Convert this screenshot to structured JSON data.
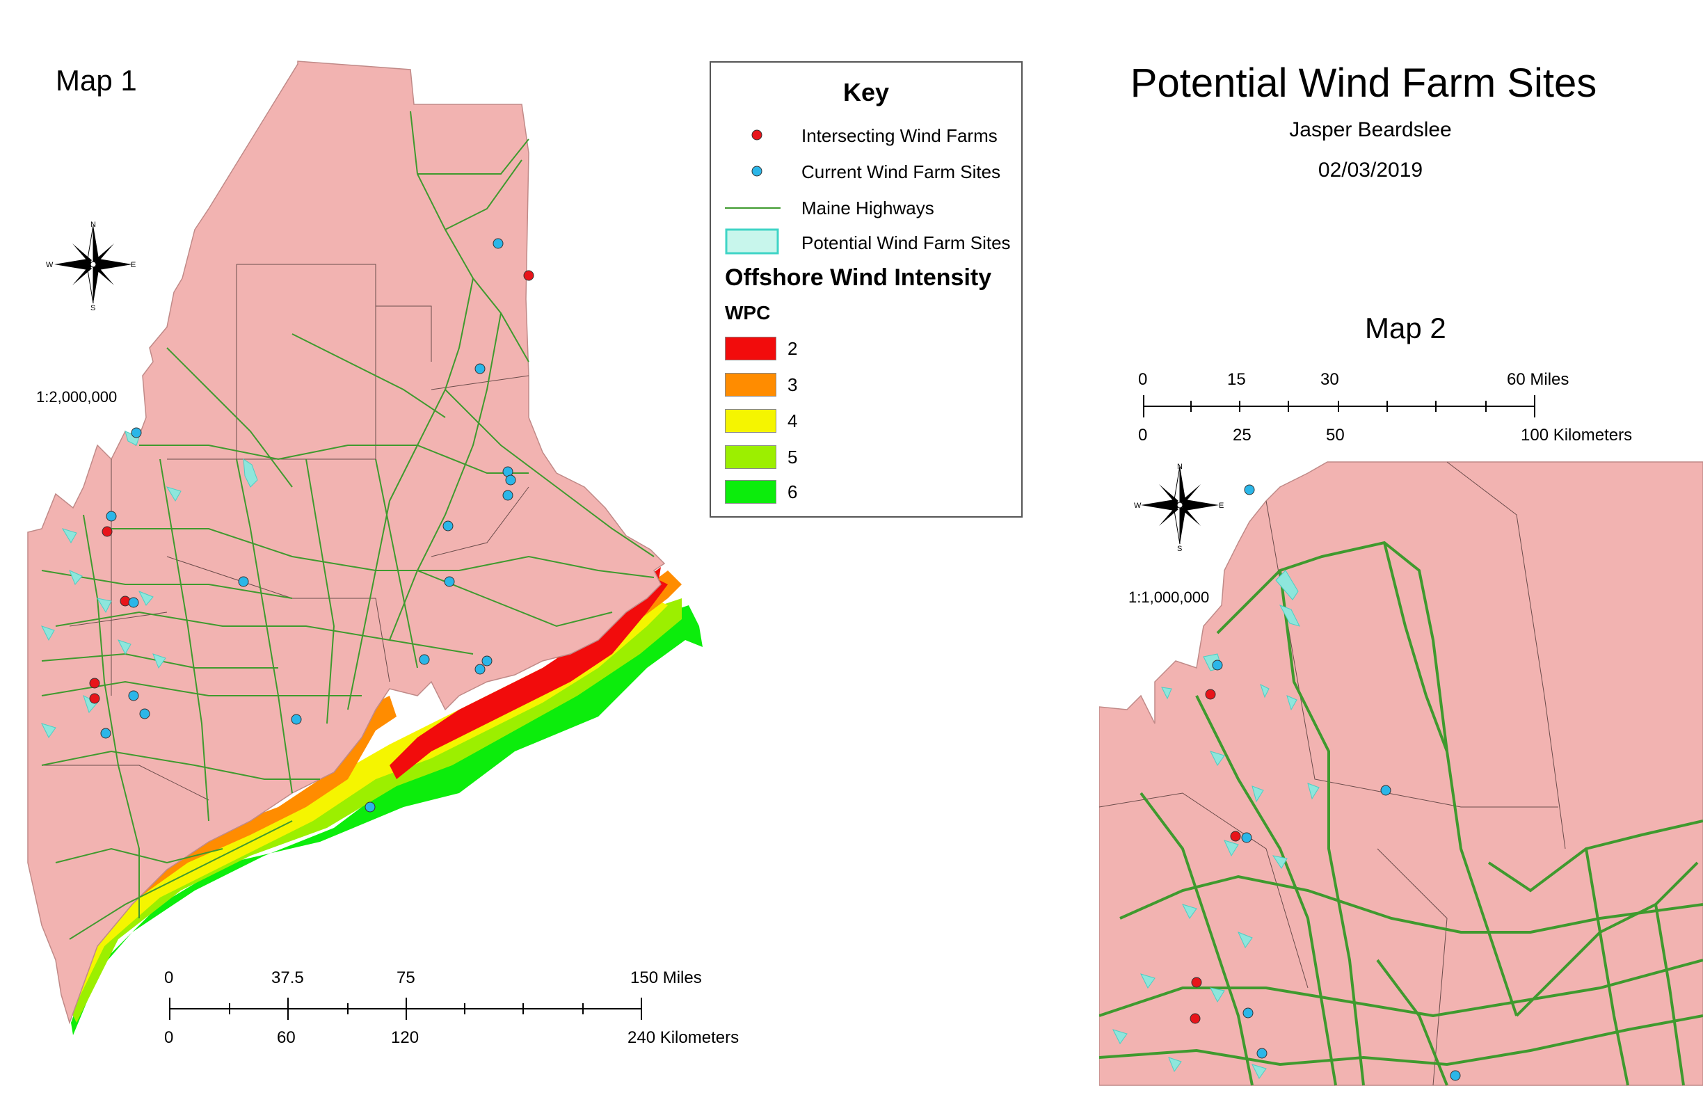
{
  "map1": {
    "title": "Map 1",
    "scale_ratio": "1:2,000,000",
    "scale_miles": [
      "0",
      "37.5",
      "75",
      "150 Miles"
    ],
    "scale_km": [
      "0",
      "60",
      "120",
      "240 Kilometers"
    ]
  },
  "map2": {
    "title": "Map 2",
    "scale_ratio": "1:1,000,000",
    "scale_miles": [
      "0",
      "15",
      "30",
      "60 Miles"
    ],
    "scale_km": [
      "0",
      "25",
      "50",
      "100 Kilometers"
    ]
  },
  "header": {
    "title": "Potential Wind Farm Sites",
    "author": "Jasper Beardslee",
    "date": "02/03/2019"
  },
  "compass": {
    "n": "N",
    "s": "S",
    "e": "E",
    "w": "W"
  },
  "legend": {
    "title": "Key",
    "items": [
      {
        "label": "Intersecting Wind Farms",
        "symbol": "red-dot-icon",
        "color": "#e8141a"
      },
      {
        "label": "Current Wind Farm Sites",
        "symbol": "blue-dot-icon",
        "color": "#2bb6e8"
      },
      {
        "label": "Maine Highways",
        "symbol": "green-line-icon",
        "color": "#3f9a2e"
      },
      {
        "label": "Potential Wind Farm Sites",
        "symbol": "cyan-polygon-icon",
        "color": "#c8f6ec"
      }
    ],
    "subtitle": "Offshore Wind Intensity",
    "subheading": "WPC",
    "classes": [
      {
        "label": "2",
        "color": "#f20c0c"
      },
      {
        "label": "3",
        "color": "#ff8c00"
      },
      {
        "label": "4",
        "color": "#f5f500"
      },
      {
        "label": "5",
        "color": "#9cef00"
      },
      {
        "label": "6",
        "color": "#0ced0c"
      }
    ]
  },
  "colors": {
    "land": "#f2b3b1",
    "highway": "#3f9a2e",
    "potential": "#8ee6dc"
  }
}
